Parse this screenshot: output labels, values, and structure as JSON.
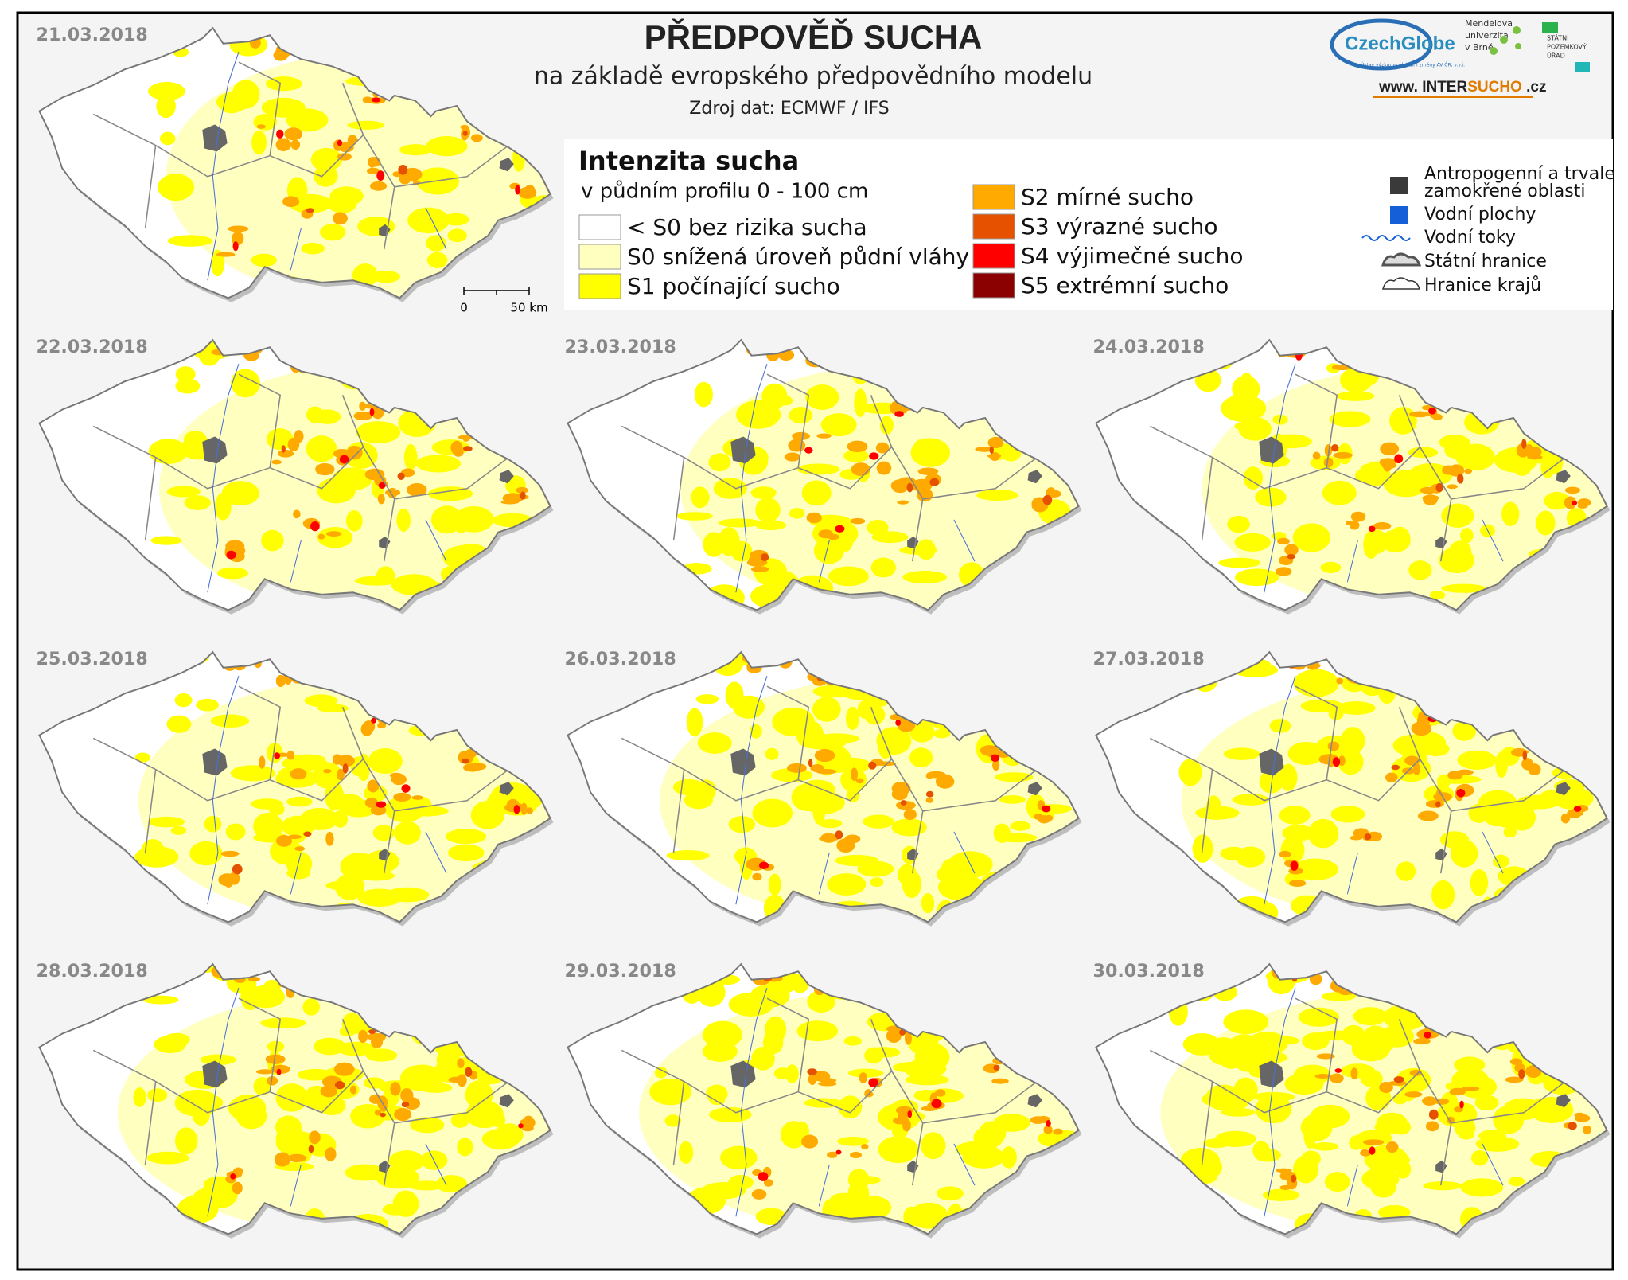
{
  "header": {
    "title": "PŘEDPOVĚĎ SUCHA",
    "subtitle": "na základě evropského předpovědního modelu",
    "source": "Zdroj dat: ECMWF / IFS"
  },
  "logos": {
    "czechglobe": "CzechGlobe",
    "czechglobe_tagline": "Ústav výzkumu globální změny AV ČR, v.v.i.",
    "mendel": [
      "Mendelova",
      "univerzita",
      "v Brně"
    ],
    "spu": [
      "STÁTNÍ",
      "POZEMKOVÝ",
      "ÚŘAD"
    ],
    "web": {
      "prefix": "www. INTER",
      "brand": "SUCHO",
      "suffix": " .cz"
    }
  },
  "maps": [
    {
      "date": "21.03.2018"
    },
    {
      "date": "22.03.2018"
    },
    {
      "date": "23.03.2018"
    },
    {
      "date": "24.03.2018"
    },
    {
      "date": "25.03.2018"
    },
    {
      "date": "26.03.2018"
    },
    {
      "date": "27.03.2018"
    },
    {
      "date": "28.03.2018"
    },
    {
      "date": "29.03.2018"
    },
    {
      "date": "30.03.2018"
    }
  ],
  "scale_bar": {
    "start": "0",
    "end": "50 km"
  },
  "legend": {
    "title": "Intenzita sucha",
    "subtitle": "v půdním profilu 0 - 100 cm",
    "classes": [
      {
        "label": "< S0 bez rizika sucha",
        "color": "#ffffff"
      },
      {
        "label": "S0 snížená úroveň půdní vláhy",
        "color": "#ffffc0"
      },
      {
        "label": "S1 počínající sucho",
        "color": "#ffff00"
      },
      {
        "label": "S2 mírné sucho",
        "color": "#ffaa00"
      },
      {
        "label": "S3 výrazné sucho",
        "color": "#e65100"
      },
      {
        "label": "S4 výjimečné sucho",
        "color": "#ff0000"
      },
      {
        "label": "S5 extrémní sucho",
        "color": "#8b0000"
      }
    ],
    "layers": [
      {
        "label": [
          "Antropogenní a trvale",
          "zamokřené oblasti"
        ],
        "color": "#3a3a3a"
      },
      {
        "label": [
          "Vodní plochy"
        ],
        "color": "#1560d8"
      },
      {
        "label": [
          "Vodní toky"
        ],
        "color": "#1560d8"
      },
      {
        "label": [
          "Státní hranice"
        ],
        "color": "#555555"
      },
      {
        "label": [
          "Hranice krajů"
        ],
        "color": "#333333"
      }
    ]
  }
}
